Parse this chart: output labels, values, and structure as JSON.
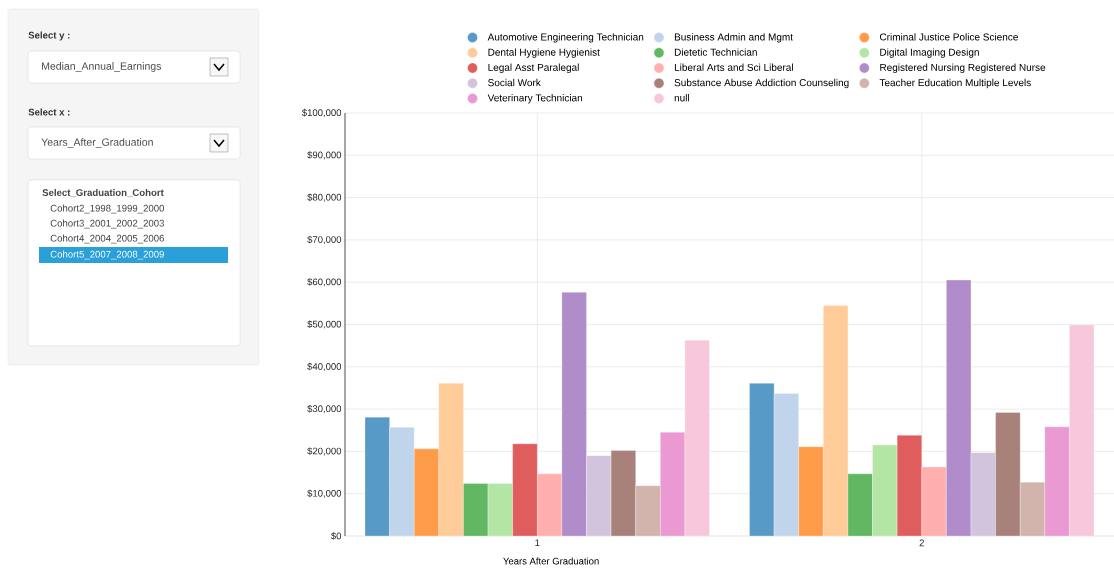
{
  "chart_data": {
    "type": "bar",
    "categories": [
      "1",
      "2"
    ],
    "xlabel": "Years After Graduation",
    "ylim": [
      0,
      100000
    ],
    "yticks": [
      {
        "value": 0,
        "label": "$0"
      },
      {
        "value": 10000,
        "label": "$10,000"
      },
      {
        "value": 20000,
        "label": "$20,000"
      },
      {
        "value": 30000,
        "label": "$30,000"
      },
      {
        "value": 40000,
        "label": "$40,000"
      },
      {
        "value": 50000,
        "label": "$50,000"
      },
      {
        "value": 60000,
        "label": "$60,000"
      },
      {
        "value": 70000,
        "label": "$70,000"
      },
      {
        "value": 80000,
        "label": "$80,000"
      },
      {
        "value": 90000,
        "label": "$90,000"
      },
      {
        "value": 100000,
        "label": "$100,000"
      }
    ],
    "grid": true,
    "legend": "top",
    "series": [
      {
        "name": "Automotive Engineering Technician",
        "color": "#5799c7",
        "values": [
          28100,
          36100
        ]
      },
      {
        "name": "Business Admin and Mgmt",
        "color": "#c0d4ec",
        "values": [
          25700,
          33700
        ]
      },
      {
        "name": "Criminal Justice Police Science",
        "color": "#ff9c4a",
        "values": [
          20600,
          21100
        ]
      },
      {
        "name": "Dental Hygiene Hygienist",
        "color": "#ffcb98",
        "values": [
          36100,
          54500
        ]
      },
      {
        "name": "Dietetic Technician",
        "color": "#62b862",
        "values": [
          12400,
          14700
        ]
      },
      {
        "name": "Digital Imaging Design",
        "color": "#b3e6a4",
        "values": [
          12400,
          21500
        ]
      },
      {
        "name": "Legal Asst Paralegal",
        "color": "#e05d5d",
        "values": [
          21800,
          23800
        ]
      },
      {
        "name": "Liberal Arts and Sci Liberal",
        "color": "#ffb0ae",
        "values": [
          14700,
          16300
        ]
      },
      {
        "name": "Registered Nursing Registered Nurse",
        "color": "#b08ccb",
        "values": [
          57600,
          60500
        ]
      },
      {
        "name": "Social Work",
        "color": "#d3c4de",
        "values": [
          19000,
          19700
        ]
      },
      {
        "name": "Substance Abuse Addiction Counseling",
        "color": "#a7817a",
        "values": [
          20200,
          29200
        ]
      },
      {
        "name": "Teacher Education Multiple Levels",
        "color": "#d2b4ad",
        "values": [
          11900,
          12700
        ]
      },
      {
        "name": "Veterinary Technician",
        "color": "#ea99d2",
        "values": [
          24500,
          25800
        ]
      },
      {
        "name": "null",
        "color": "#f7c7db",
        "values": [
          46300,
          49900
        ]
      }
    ],
    "annotations": [
      "Select y :",
      "Median_Annual_Earnings",
      "Select x :",
      "Years_After_Graduation",
      "Select_Graduation_Cohort",
      "Cohort2_1998_1999_2000",
      "Cohort3_2001_2002_2003",
      "Cohort4_2004_2005_2006",
      "Cohort5_2007_2008_2009"
    ]
  }
}
